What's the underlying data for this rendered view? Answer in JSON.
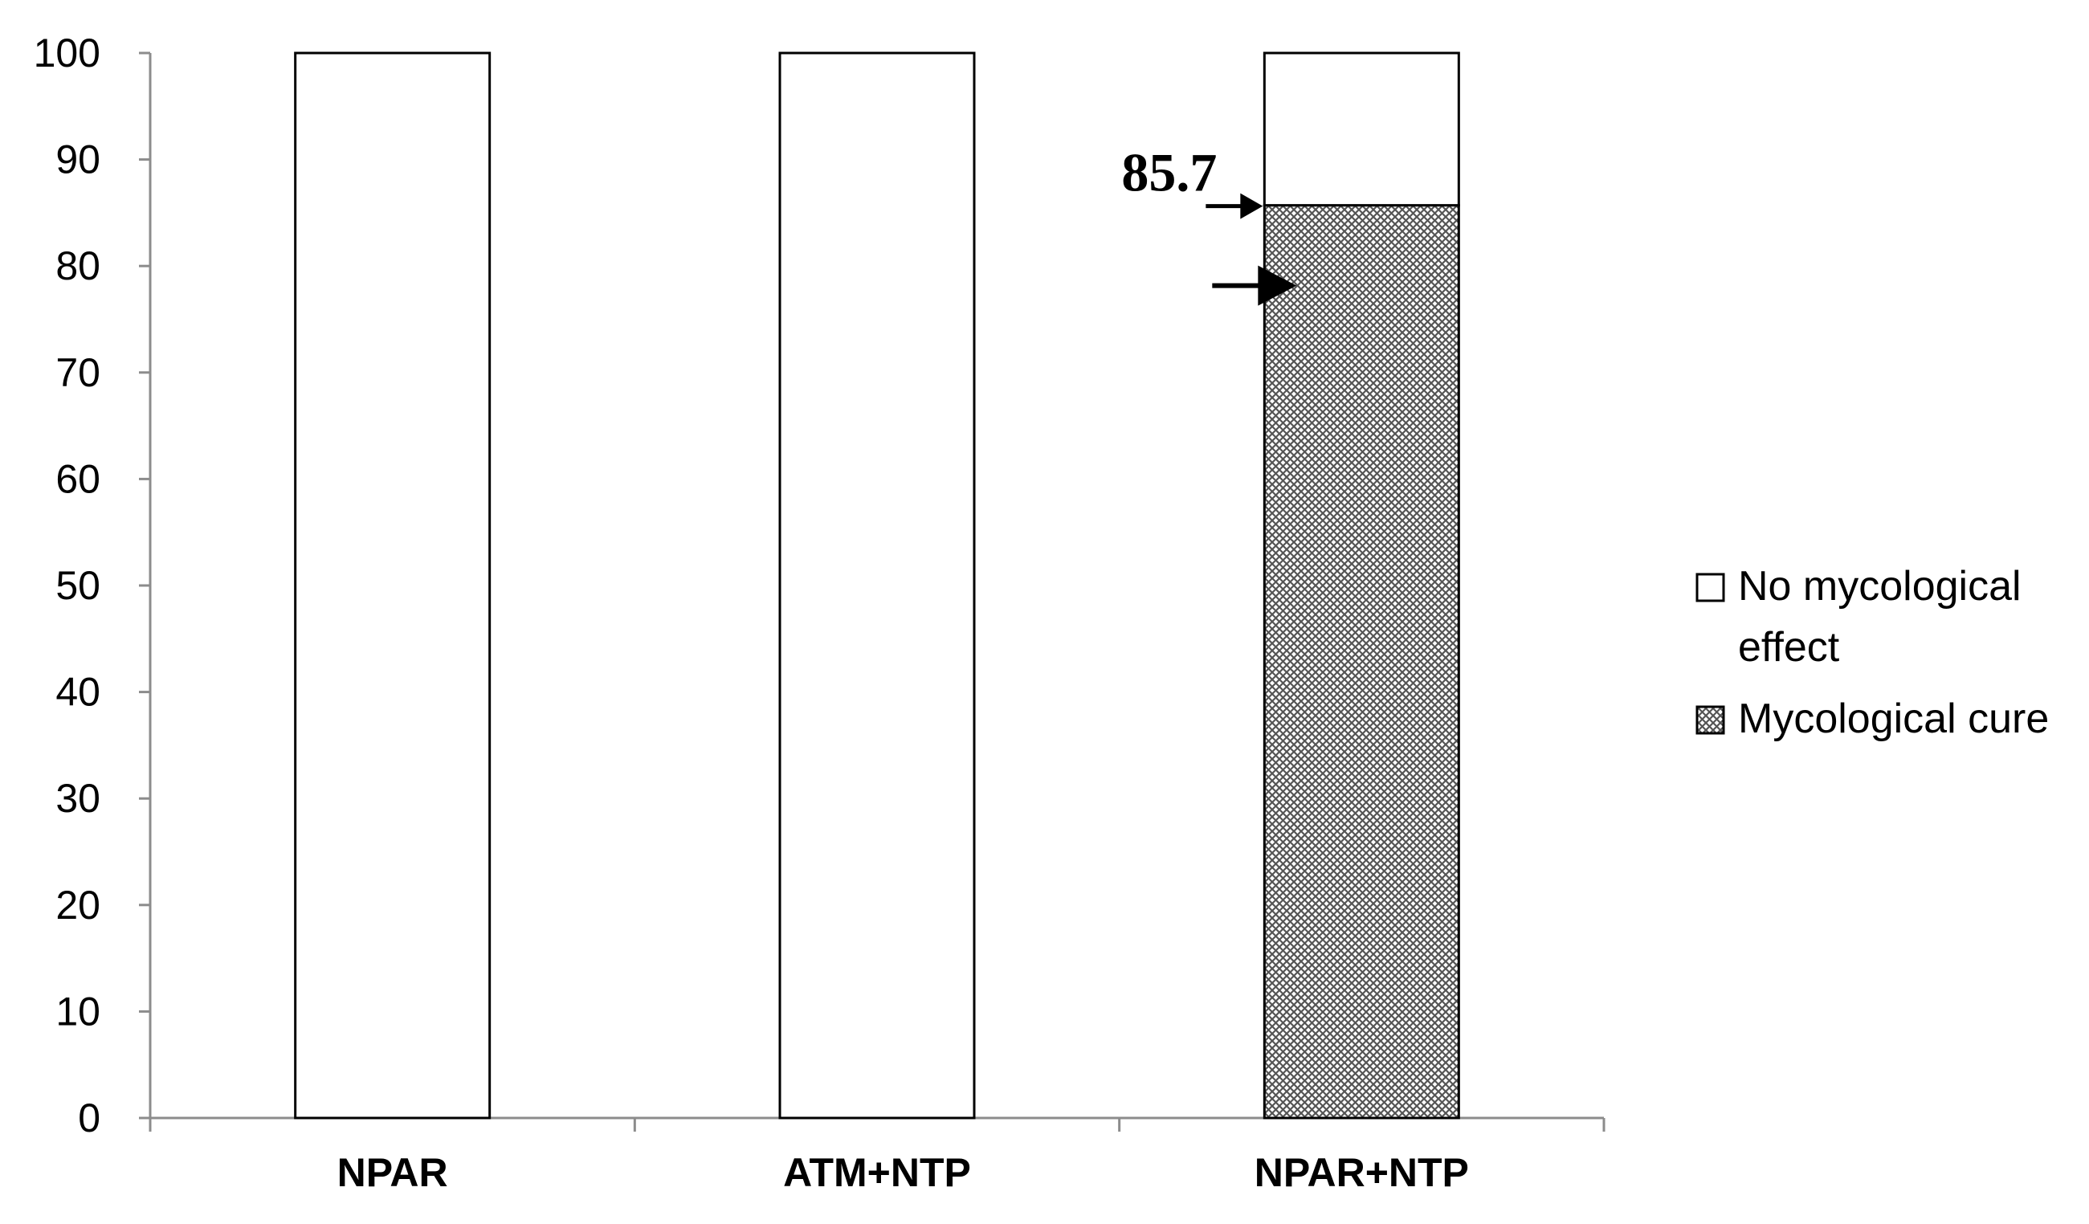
{
  "chart_data": {
    "type": "bar",
    "stacked": true,
    "title": "",
    "xlabel": "",
    "ylabel": "",
    "ylim": [
      0,
      100
    ],
    "yticks": [
      0,
      10,
      20,
      30,
      40,
      50,
      60,
      70,
      80,
      90,
      100
    ],
    "grid": false,
    "categories": [
      "NPAR",
      "ATM+NTP",
      "NPAR+NTP"
    ],
    "series": [
      {
        "name": "Mycological cure",
        "values": [
          0,
          0,
          85.7
        ],
        "fill": "crosshatch",
        "color": "#000000"
      },
      {
        "name": "No mycological effect",
        "values": [
          100,
          100,
          14.3
        ],
        "fill": "solid",
        "color": "#ffffff"
      }
    ],
    "legend": {
      "placement": "right",
      "entries": [
        {
          "series": "No mycological effect",
          "lines": [
            "No mycological",
            "effect"
          ]
        },
        {
          "series": "Mycological cure",
          "lines": [
            "Mycological cure"
          ]
        }
      ]
    },
    "annotations": [
      {
        "text": "85.7",
        "category": "NPAR+NTP",
        "value": 85.7
      }
    ]
  }
}
